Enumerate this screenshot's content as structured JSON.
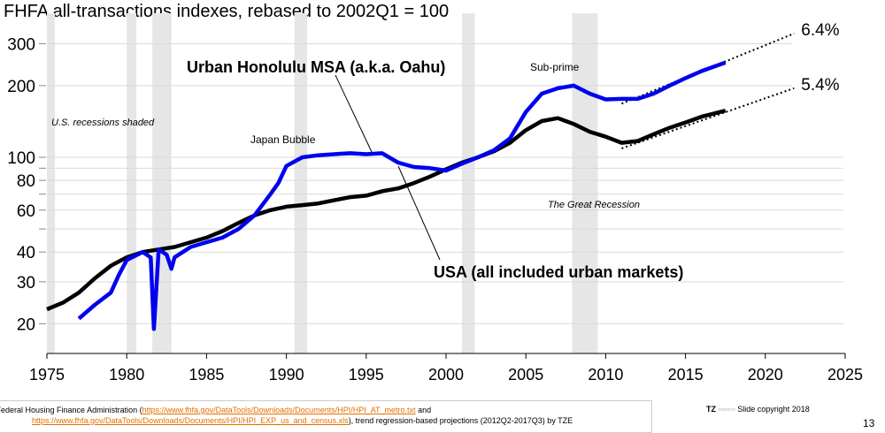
{
  "chart_data": {
    "type": "line",
    "title": "FHFA all-transactions indexes, rebased to 2002Q1 = 100",
    "y_scale": "log",
    "ylim": [
      16,
      340
    ],
    "xlim": [
      1975,
      2025
    ],
    "x_ticks": [
      1975,
      1980,
      1985,
      1990,
      1995,
      2000,
      2005,
      2010,
      2015,
      2020,
      2025
    ],
    "y_ticks": [
      20,
      30,
      40,
      60,
      80,
      100,
      200,
      300
    ],
    "y_grid": [
      20,
      30,
      40,
      50,
      60,
      70,
      80,
      90,
      100,
      200,
      300
    ],
    "grid": "horizontal",
    "recessions": [
      [
        1975,
        1975.5
      ],
      [
        1980,
        1980.6
      ],
      [
        1981.6,
        1982.8
      ],
      [
        1990.5,
        1991.3
      ],
      [
        2001,
        2001.8
      ],
      [
        2007.9,
        2009.5
      ]
    ],
    "series": [
      {
        "name": "Urban Honolulu MSA (a.k.a. Oahu)",
        "color": "#0000ee",
        "x": [
          1977,
          1978,
          1979,
          1979.5,
          1980,
          1981,
          1981.5,
          1981.7,
          1982,
          1982.5,
          1982.8,
          1983,
          1984,
          1985,
          1986,
          1987,
          1988,
          1989,
          1989.5,
          1990,
          1991,
          1992,
          1993,
          1994,
          1995,
          1996,
          1997,
          1998,
          1999,
          2000,
          2001,
          2002,
          2003,
          2004,
          2005,
          2006,
          2007,
          2008,
          2009,
          2010,
          2011,
          2012,
          2013,
          2014,
          2015,
          2016,
          2017.5
        ],
        "y": [
          21,
          24,
          27,
          32,
          37,
          40,
          38,
          19,
          41,
          39,
          34,
          38,
          42,
          44,
          46,
          50,
          57,
          70,
          78,
          92,
          100,
          102,
          103,
          104,
          103,
          104,
          95,
          91,
          90,
          88,
          94,
          100,
          107,
          120,
          155,
          185,
          195,
          200,
          185,
          175,
          176,
          176,
          185,
          200,
          215,
          230,
          250
        ]
      },
      {
        "name": "USA (all included urban markets)",
        "color": "#000000",
        "x": [
          1975,
          1976,
          1977,
          1978,
          1979,
          1980,
          1981,
          1982,
          1983,
          1984,
          1985,
          1986,
          1987,
          1988,
          1989,
          1990,
          1991,
          1992,
          1993,
          1994,
          1995,
          1996,
          1997,
          1998,
          1999,
          2000,
          2001,
          2002,
          2003,
          2004,
          2005,
          2006,
          2007,
          2008,
          2009,
          2010,
          2011,
          2012,
          2013,
          2014,
          2015,
          2016,
          2017.5
        ],
        "y": [
          23,
          24.5,
          27,
          31,
          35,
          38,
          40,
          41,
          42,
          44,
          46,
          49,
          53,
          57,
          60,
          62,
          63,
          64,
          66,
          68,
          69,
          72,
          74,
          78,
          83,
          89,
          95,
          100,
          106,
          115,
          130,
          142,
          146,
          138,
          128,
          122,
          115,
          117,
          125,
          133,
          140,
          148,
          157
        ]
      }
    ],
    "trends": [
      {
        "label": "6.4%",
        "color": "#000000",
        "x": [
          2011,
          2021.8
        ],
        "y": [
          168,
          331
        ]
      },
      {
        "label": "5.4%",
        "color": "#000000",
        "x": [
          2011,
          2021.8
        ],
        "y": [
          109,
          195
        ]
      }
    ],
    "annotations": {
      "recessions_note": "U.S. recessions shaded",
      "japan": "Japan Bubble",
      "subprime": "Sub-prime",
      "great": "The Great Recession"
    }
  },
  "footer": {
    "source_prefix": "rce:  Federal Housing Finance Administration (",
    "link1": "https://www.fhfa.gov/DataTools/Downloads/Documents/HPI/HPI_AT_metro.txt",
    "mid": " and",
    "link2": "https://www.fhfa.gov/DataTools/Downloads/Documents/HPI/HPI_EXP_us_and_census.xls",
    "suffix": "),  trend regression-based projections (2012Q2-2017Q3) by TZE",
    "logo": "TZ",
    "copyright": "Slide copyright 2018",
    "page": "13"
  }
}
